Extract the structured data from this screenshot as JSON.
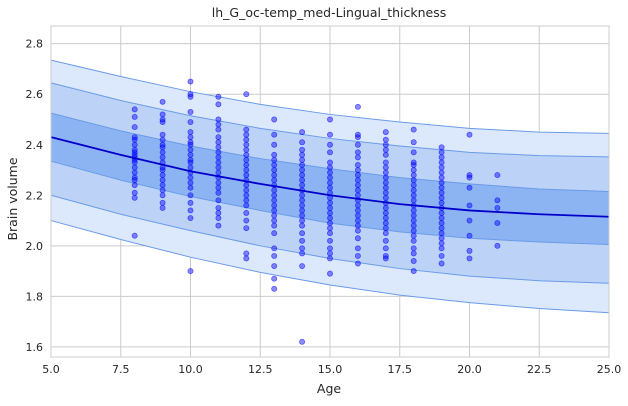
{
  "chart_data": {
    "type": "scatter",
    "title": "lh_G_oc-temp_med-Lingual_thickness",
    "xlabel": "Age",
    "ylabel": "Brain volume",
    "xlim": [
      5.0,
      25.0
    ],
    "ylim": [
      1.56,
      2.87
    ],
    "xticks": [
      5.0,
      7.5,
      10.0,
      12.5,
      15.0,
      17.5,
      20.0,
      22.5,
      25.0
    ],
    "xtick_labels": [
      "5.0",
      "7.5",
      "10.0",
      "12.5",
      "15.0",
      "17.5",
      "20.0",
      "22.5",
      "25.0"
    ],
    "yticks": [
      1.6,
      1.8,
      2.0,
      2.2,
      2.4,
      2.6,
      2.8
    ],
    "ytick_labels": [
      "1.6",
      "1.8",
      "2.0",
      "2.2",
      "2.4",
      "2.6",
      "2.8"
    ],
    "grid": true,
    "colors": {
      "points": "#0000ff",
      "median_line": "#0000cc",
      "band_outer": "#dce8fb",
      "band_middle": "#bcd3f7",
      "band_inner": "#8db4f2",
      "band_edge": "#6a9be8",
      "grid": "#cccccc"
    },
    "centile_x": [
      5,
      7.5,
      10,
      12.5,
      15,
      17.5,
      20,
      22.5,
      25
    ],
    "centiles": [
      {
        "name": "lower-outer",
        "values": [
          2.1,
          2.025,
          1.955,
          1.895,
          1.845,
          1.805,
          1.775,
          1.752,
          1.735
        ]
      },
      {
        "name": "lower-middle",
        "values": [
          2.2,
          2.125,
          2.06,
          2.0,
          1.95,
          1.91,
          1.88,
          1.862,
          1.852
        ]
      },
      {
        "name": "lower-inner",
        "values": [
          2.335,
          2.26,
          2.195,
          2.14,
          2.09,
          2.055,
          2.03,
          2.015,
          2.005
        ]
      },
      {
        "name": "median",
        "values": [
          2.43,
          2.36,
          2.295,
          2.245,
          2.2,
          2.165,
          2.14,
          2.125,
          2.115
        ]
      },
      {
        "name": "upper-inner",
        "values": [
          2.525,
          2.455,
          2.395,
          2.345,
          2.305,
          2.27,
          2.245,
          2.225,
          2.215
        ]
      },
      {
        "name": "upper-middle",
        "values": [
          2.645,
          2.575,
          2.515,
          2.465,
          2.425,
          2.395,
          2.37,
          2.357,
          2.352
        ]
      },
      {
        "name": "upper-outer",
        "values": [
          2.735,
          2.67,
          2.61,
          2.56,
          2.52,
          2.49,
          2.465,
          2.45,
          2.445
        ]
      }
    ],
    "points": [
      [
        8,
        2.54
      ],
      [
        8,
        2.51
      ],
      [
        8,
        2.47
      ],
      [
        8,
        2.43
      ],
      [
        8,
        2.42
      ],
      [
        8,
        2.4
      ],
      [
        8,
        2.38
      ],
      [
        8,
        2.37
      ],
      [
        8,
        2.36
      ],
      [
        8,
        2.35
      ],
      [
        8,
        2.34
      ],
      [
        8,
        2.33
      ],
      [
        8,
        2.31
      ],
      [
        8,
        2.29
      ],
      [
        8,
        2.27
      ],
      [
        8,
        2.26
      ],
      [
        8,
        2.24
      ],
      [
        8,
        2.21
      ],
      [
        8,
        2.19
      ],
      [
        8,
        2.04
      ],
      [
        9,
        2.57
      ],
      [
        9,
        2.52
      ],
      [
        9,
        2.5
      ],
      [
        9,
        2.49
      ],
      [
        9,
        2.44
      ],
      [
        9,
        2.42
      ],
      [
        9,
        2.4
      ],
      [
        9,
        2.39
      ],
      [
        9,
        2.37
      ],
      [
        9,
        2.35
      ],
      [
        9,
        2.33
      ],
      [
        9,
        2.31
      ],
      [
        9,
        2.3
      ],
      [
        9,
        2.28
      ],
      [
        9,
        2.26
      ],
      [
        9,
        2.24
      ],
      [
        9,
        2.22
      ],
      [
        9,
        2.2
      ],
      [
        9,
        2.17
      ],
      [
        9,
        2.15
      ],
      [
        10,
        2.65
      ],
      [
        10,
        2.6
      ],
      [
        10,
        2.59
      ],
      [
        10,
        2.53
      ],
      [
        10,
        2.49
      ],
      [
        10,
        2.45
      ],
      [
        10,
        2.43
      ],
      [
        10,
        2.41
      ],
      [
        10,
        2.4
      ],
      [
        10,
        2.38
      ],
      [
        10,
        2.36
      ],
      [
        10,
        2.34
      ],
      [
        10,
        2.33
      ],
      [
        10,
        2.31
      ],
      [
        10,
        2.29
      ],
      [
        10,
        2.27
      ],
      [
        10,
        2.25
      ],
      [
        10,
        2.23
      ],
      [
        10,
        2.2
      ],
      [
        10,
        2.17
      ],
      [
        10,
        2.14
      ],
      [
        10,
        2.11
      ],
      [
        10,
        1.9
      ],
      [
        11,
        2.59
      ],
      [
        11,
        2.56
      ],
      [
        11,
        2.5
      ],
      [
        11,
        2.48
      ],
      [
        11,
        2.46
      ],
      [
        11,
        2.43
      ],
      [
        11,
        2.41
      ],
      [
        11,
        2.39
      ],
      [
        11,
        2.37
      ],
      [
        11,
        2.35
      ],
      [
        11,
        2.33
      ],
      [
        11,
        2.31
      ],
      [
        11,
        2.29
      ],
      [
        11,
        2.27
      ],
      [
        11,
        2.25
      ],
      [
        11,
        2.23
      ],
      [
        11,
        2.21
      ],
      [
        11,
        2.18
      ],
      [
        11,
        2.15
      ],
      [
        11,
        2.13
      ],
      [
        11,
        2.11
      ],
      [
        11,
        2.08
      ],
      [
        12,
        2.6
      ],
      [
        12,
        2.46
      ],
      [
        12,
        2.44
      ],
      [
        12,
        2.42
      ],
      [
        12,
        2.4
      ],
      [
        12,
        2.38
      ],
      [
        12,
        2.36
      ],
      [
        12,
        2.34
      ],
      [
        12,
        2.32
      ],
      [
        12,
        2.3
      ],
      [
        12,
        2.28
      ],
      [
        12,
        2.26
      ],
      [
        12,
        2.24
      ],
      [
        12,
        2.22
      ],
      [
        12,
        2.2
      ],
      [
        12,
        2.18
      ],
      [
        12,
        2.16
      ],
      [
        12,
        2.13
      ],
      [
        12,
        2.1
      ],
      [
        12,
        2.07
      ],
      [
        12,
        1.97
      ],
      [
        12,
        1.95
      ],
      [
        13,
        2.5
      ],
      [
        13,
        2.44
      ],
      [
        13,
        2.4
      ],
      [
        13,
        2.36
      ],
      [
        13,
        2.34
      ],
      [
        13,
        2.32
      ],
      [
        13,
        2.3
      ],
      [
        13,
        2.28
      ],
      [
        13,
        2.26
      ],
      [
        13,
        2.24
      ],
      [
        13,
        2.22
      ],
      [
        13,
        2.2
      ],
      [
        13,
        2.18
      ],
      [
        13,
        2.16
      ],
      [
        13,
        2.14
      ],
      [
        13,
        2.12
      ],
      [
        13,
        2.1
      ],
      [
        13,
        2.08
      ],
      [
        13,
        2.05
      ],
      [
        13,
        1.99
      ],
      [
        13,
        1.96
      ],
      [
        13,
        1.92
      ],
      [
        13,
        1.87
      ],
      [
        13,
        1.83
      ],
      [
        14,
        2.45
      ],
      [
        14,
        2.41
      ],
      [
        14,
        2.38
      ],
      [
        14,
        2.36
      ],
      [
        14,
        2.34
      ],
      [
        14,
        2.32
      ],
      [
        14,
        2.3
      ],
      [
        14,
        2.28
      ],
      [
        14,
        2.26
      ],
      [
        14,
        2.24
      ],
      [
        14,
        2.22
      ],
      [
        14,
        2.2
      ],
      [
        14,
        2.18
      ],
      [
        14,
        2.16
      ],
      [
        14,
        2.14
      ],
      [
        14,
        2.12
      ],
      [
        14,
        2.1
      ],
      [
        14,
        2.08
      ],
      [
        14,
        2.05
      ],
      [
        14,
        2.02
      ],
      [
        14,
        1.99
      ],
      [
        14,
        1.97
      ],
      [
        14,
        1.92
      ],
      [
        14,
        1.62
      ],
      [
        15,
        2.5
      ],
      [
        15,
        2.44
      ],
      [
        15,
        2.4
      ],
      [
        15,
        2.37
      ],
      [
        15,
        2.33
      ],
      [
        15,
        2.31
      ],
      [
        15,
        2.29
      ],
      [
        15,
        2.27
      ],
      [
        15,
        2.25
      ],
      [
        15,
        2.23
      ],
      [
        15,
        2.21
      ],
      [
        15,
        2.19
      ],
      [
        15,
        2.17
      ],
      [
        15,
        2.15
      ],
      [
        15,
        2.13
      ],
      [
        15,
        2.11
      ],
      [
        15,
        2.09
      ],
      [
        15,
        2.07
      ],
      [
        15,
        2.05
      ],
      [
        15,
        2.02
      ],
      [
        15,
        1.99
      ],
      [
        15,
        1.97
      ],
      [
        15,
        1.95
      ],
      [
        15,
        1.89
      ],
      [
        16,
        2.55
      ],
      [
        16,
        2.44
      ],
      [
        16,
        2.43
      ],
      [
        16,
        2.4
      ],
      [
        16,
        2.37
      ],
      [
        16,
        2.35
      ],
      [
        16,
        2.32
      ],
      [
        16,
        2.3
      ],
      [
        16,
        2.28
      ],
      [
        16,
        2.26
      ],
      [
        16,
        2.24
      ],
      [
        16,
        2.22
      ],
      [
        16,
        2.2
      ],
      [
        16,
        2.18
      ],
      [
        16,
        2.16
      ],
      [
        16,
        2.14
      ],
      [
        16,
        2.12
      ],
      [
        16,
        2.1
      ],
      [
        16,
        2.08
      ],
      [
        16,
        2.06
      ],
      [
        16,
        2.03
      ],
      [
        16,
        1.99
      ],
      [
        16,
        1.96
      ],
      [
        16,
        1.93
      ],
      [
        17,
        2.45
      ],
      [
        17,
        2.42
      ],
      [
        17,
        2.4
      ],
      [
        17,
        2.38
      ],
      [
        17,
        2.36
      ],
      [
        17,
        2.33
      ],
      [
        17,
        2.31
      ],
      [
        17,
        2.29
      ],
      [
        17,
        2.27
      ],
      [
        17,
        2.25
      ],
      [
        17,
        2.23
      ],
      [
        17,
        2.21
      ],
      [
        17,
        2.19
      ],
      [
        17,
        2.17
      ],
      [
        17,
        2.15
      ],
      [
        17,
        2.13
      ],
      [
        17,
        2.11
      ],
      [
        17,
        2.09
      ],
      [
        17,
        2.07
      ],
      [
        17,
        2.05
      ],
      [
        17,
        2.02
      ],
      [
        17,
        1.99
      ],
      [
        17,
        1.96
      ],
      [
        17,
        1.95
      ],
      [
        18,
        2.46
      ],
      [
        18,
        2.41
      ],
      [
        18,
        2.37
      ],
      [
        18,
        2.33
      ],
      [
        18,
        2.32
      ],
      [
        18,
        2.3
      ],
      [
        18,
        2.28
      ],
      [
        18,
        2.26
      ],
      [
        18,
        2.24
      ],
      [
        18,
        2.22
      ],
      [
        18,
        2.2
      ],
      [
        18,
        2.18
      ],
      [
        18,
        2.16
      ],
      [
        18,
        2.14
      ],
      [
        18,
        2.12
      ],
      [
        18,
        2.1
      ],
      [
        18,
        2.08
      ],
      [
        18,
        2.06
      ],
      [
        18,
        2.04
      ],
      [
        18,
        2.02
      ],
      [
        18,
        1.99
      ],
      [
        18,
        1.97
      ],
      [
        18,
        1.94
      ],
      [
        18,
        1.9
      ],
      [
        19,
        2.39
      ],
      [
        19,
        2.37
      ],
      [
        19,
        2.35
      ],
      [
        19,
        2.33
      ],
      [
        19,
        2.31
      ],
      [
        19,
        2.29
      ],
      [
        19,
        2.27
      ],
      [
        19,
        2.25
      ],
      [
        19,
        2.23
      ],
      [
        19,
        2.21
      ],
      [
        19,
        2.19
      ],
      [
        19,
        2.17
      ],
      [
        19,
        2.15
      ],
      [
        19,
        2.13
      ],
      [
        19,
        2.11
      ],
      [
        19,
        2.09
      ],
      [
        19,
        2.07
      ],
      [
        19,
        2.05
      ],
      [
        19,
        2.03
      ],
      [
        19,
        2.01
      ],
      [
        19,
        1.99
      ],
      [
        19,
        1.96
      ],
      [
        19,
        1.93
      ],
      [
        20,
        2.44
      ],
      [
        20,
        2.28
      ],
      [
        20,
        2.27
      ],
      [
        20,
        2.23
      ],
      [
        20,
        2.16
      ],
      [
        20,
        2.1
      ],
      [
        20,
        2.04
      ],
      [
        20,
        1.98
      ],
      [
        20,
        1.95
      ],
      [
        21,
        2.28
      ],
      [
        21,
        2.18
      ],
      [
        21,
        2.15
      ],
      [
        21,
        2.09
      ],
      [
        21,
        2.0
      ]
    ]
  }
}
